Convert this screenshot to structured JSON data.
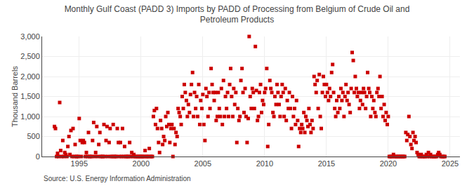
{
  "chart_data": {
    "type": "scatter",
    "title": "Monthly Gulf Coast (PADD 3) Imports by PADD of Processing from Belgium of Crude Oil and\nPetroleum Products",
    "ylabel": "Thousand Barrels",
    "annotations": [
      "Source: U.S. Energy Information Administration"
    ],
    "color": "#cc0000",
    "marker": "square",
    "grid": true,
    "xlim": [
      1992.0,
      2025.8
    ],
    "ylim": [
      0,
      3000
    ],
    "xticks": [
      1995,
      2000,
      2005,
      2010,
      2015,
      2020,
      2025
    ],
    "yticks": [
      0,
      500,
      {
        "value": 1000,
        "label": "1,000"
      },
      {
        "value": 1500,
        "label": "1,500"
      },
      {
        "value": 2000,
        "label": "2,000"
      },
      {
        "value": 2500,
        "label": "2,500"
      },
      {
        "value": 3000,
        "label": "3,000"
      }
    ],
    "x": [
      1993.0,
      1993.08,
      1993.17,
      1993.25,
      1993.33,
      1993.42,
      1993.5,
      1993.58,
      1993.67,
      1993.75,
      1993.83,
      1993.92,
      1994.0,
      1994.08,
      1994.17,
      1994.25,
      1994.33,
      1994.42,
      1994.5,
      1994.58,
      1994.67,
      1994.75,
      1994.83,
      1994.92,
      1995.0,
      1995.08,
      1995.17,
      1995.25,
      1995.33,
      1995.42,
      1995.5,
      1995.58,
      1995.67,
      1995.75,
      1995.83,
      1995.92,
      1996.0,
      1996.08,
      1996.17,
      1996.25,
      1996.33,
      1996.42,
      1996.5,
      1996.58,
      1996.67,
      1996.75,
      1996.83,
      1996.92,
      1997.0,
      1997.08,
      1997.17,
      1997.25,
      1997.33,
      1997.42,
      1997.5,
      1997.58,
      1997.67,
      1997.75,
      1997.83,
      1997.92,
      1998.0,
      1998.08,
      1998.17,
      1998.25,
      1998.33,
      1998.42,
      1998.5,
      1998.58,
      1998.67,
      1998.75,
      1998.83,
      1998.92,
      1999.0,
      1999.08,
      1999.17,
      1999.25,
      1999.33,
      1999.42,
      1999.5,
      1999.58,
      1999.67,
      1999.75,
      1999.83,
      1999.92,
      2000.0,
      2000.08,
      2000.17,
      2000.25,
      2000.33,
      2000.42,
      2000.5,
      2000.58,
      2000.67,
      2000.75,
      2000.83,
      2000.92,
      2001.0,
      2001.08,
      2001.17,
      2001.25,
      2001.33,
      2001.42,
      2001.5,
      2001.58,
      2001.67,
      2001.75,
      2001.83,
      2001.92,
      2002.0,
      2002.08,
      2002.17,
      2002.25,
      2002.33,
      2002.42,
      2002.5,
      2002.58,
      2002.67,
      2002.75,
      2002.83,
      2002.92,
      2003.0,
      2003.08,
      2003.17,
      2003.25,
      2003.33,
      2003.42,
      2003.5,
      2003.58,
      2003.67,
      2003.75,
      2003.83,
      2003.92,
      2004.0,
      2004.08,
      2004.17,
      2004.25,
      2004.33,
      2004.42,
      2004.5,
      2004.58,
      2004.67,
      2004.75,
      2004.83,
      2004.92,
      2005.0,
      2005.08,
      2005.17,
      2005.25,
      2005.33,
      2005.42,
      2005.5,
      2005.58,
      2005.67,
      2005.75,
      2005.83,
      2005.92,
      2006.0,
      2006.08,
      2006.17,
      2006.25,
      2006.33,
      2006.42,
      2006.5,
      2006.58,
      2006.67,
      2006.75,
      2006.83,
      2006.92,
      2007.0,
      2007.08,
      2007.17,
      2007.25,
      2007.33,
      2007.42,
      2007.5,
      2007.58,
      2007.67,
      2007.75,
      2007.83,
      2007.92,
      2008.0,
      2008.08,
      2008.17,
      2008.25,
      2008.33,
      2008.42,
      2008.5,
      2008.58,
      2008.67,
      2008.75,
      2008.83,
      2008.92,
      2009.0,
      2009.08,
      2009.17,
      2009.25,
      2009.33,
      2009.42,
      2009.5,
      2009.58,
      2009.67,
      2009.75,
      2009.83,
      2009.92,
      2010.0,
      2010.08,
      2010.17,
      2010.25,
      2010.33,
      2010.42,
      2010.5,
      2010.58,
      2010.67,
      2010.75,
      2010.83,
      2010.92,
      2011.0,
      2011.08,
      2011.17,
      2011.25,
      2011.33,
      2011.42,
      2011.5,
      2011.58,
      2011.67,
      2011.75,
      2011.83,
      2011.92,
      2012.0,
      2012.08,
      2012.17,
      2012.25,
      2012.33,
      2012.42,
      2012.5,
      2012.58,
      2012.67,
      2012.75,
      2012.83,
      2012.92,
      2013.0,
      2013.08,
      2013.17,
      2013.25,
      2013.33,
      2013.42,
      2013.5,
      2013.58,
      2013.67,
      2013.75,
      2013.83,
      2013.92,
      2014.0,
      2014.08,
      2014.17,
      2014.25,
      2014.33,
      2014.42,
      2014.5,
      2014.58,
      2014.67,
      2014.75,
      2014.83,
      2014.92,
      2015.0,
      2015.08,
      2015.17,
      2015.25,
      2015.33,
      2015.42,
      2015.5,
      2015.58,
      2015.67,
      2015.75,
      2015.83,
      2015.92,
      2016.0,
      2016.08,
      2016.17,
      2016.25,
      2016.33,
      2016.42,
      2016.5,
      2016.58,
      2016.67,
      2016.75,
      2016.83,
      2016.92,
      2017.0,
      2017.08,
      2017.17,
      2017.25,
      2017.33,
      2017.42,
      2017.5,
      2017.58,
      2017.67,
      2017.75,
      2017.83,
      2017.92,
      2018.0,
      2018.08,
      2018.17,
      2018.25,
      2018.33,
      2018.42,
      2018.5,
      2018.58,
      2018.67,
      2018.75,
      2018.83,
      2018.92,
      2019.0,
      2019.08,
      2019.17,
      2019.25,
      2019.33,
      2019.42,
      2019.5,
      2019.58,
      2019.67,
      2019.75,
      2019.83,
      2019.92,
      2020.0,
      2020.08,
      2020.17,
      2020.25,
      2020.33,
      2020.42,
      2020.5,
      2020.58,
      2020.67,
      2020.75,
      2020.83,
      2020.92,
      2021.0,
      2021.08,
      2021.17,
      2021.25,
      2021.33,
      2021.42,
      2021.5,
      2021.58,
      2021.67,
      2021.75,
      2021.83,
      2021.92,
      2022.0,
      2022.08,
      2022.17,
      2022.25,
      2022.33,
      2022.42,
      2022.5,
      2022.58,
      2022.67,
      2022.75,
      2022.83,
      2022.92,
      2023.0,
      2023.08,
      2023.17,
      2023.25,
      2023.33,
      2023.42,
      2023.5,
      2023.58,
      2023.67,
      2023.75,
      2023.83,
      2023.92,
      2024.0,
      2024.08,
      2024.17,
      2024.25,
      2024.33,
      2024.42,
      2024.5,
      2024.58
    ],
    "values": [
      750,
      700,
      0,
      80,
      0,
      1350,
      150,
      0,
      400,
      0,
      100,
      50,
      0,
      250,
      500,
      50,
      650,
      0,
      700,
      0,
      300,
      0,
      0,
      0,
      950,
      400,
      0,
      350,
      400,
      350,
      0,
      100,
      0,
      600,
      0,
      0,
      0,
      400,
      850,
      0,
      100,
      750,
      0,
      300,
      600,
      0,
      0,
      0,
      800,
      0,
      400,
      750,
      0,
      350,
      700,
      0,
      0,
      800,
      0,
      0,
      0,
      700,
      350,
      0,
      350,
      0,
      700,
      0,
      250,
      0,
      0,
      0,
      0,
      350,
      0,
      100,
      0,
      50,
      0,
      0,
      0,
      0,
      0,
      0,
      0,
      0,
      0,
      0,
      150,
      0,
      0,
      0,
      200,
      0,
      0,
      0,
      1000,
      1150,
      800,
      1200,
      700,
      350,
      100,
      900,
      700,
      300,
      500,
      400,
      1000,
      750,
      1100,
      800,
      350,
      700,
      800,
      0,
      700,
      300,
      600,
      500,
      1200,
      1100,
      1000,
      800,
      1500,
      1200,
      1800,
      1600,
      1400,
      1000,
      1300,
      1100,
      1550,
      1800,
      2100,
      1000,
      1600,
      1200,
      1500,
      1000,
      1800,
      800,
      1400,
      1200,
      1550,
      800,
      400,
      1700,
      1500,
      1000,
      1600,
      1200,
      2200,
      1800,
      1600,
      1400,
      1600,
      900,
      1000,
      1600,
      1200,
      1000,
      1700,
      800,
      1900,
      1000,
      1500,
      1200,
      1600,
      1000,
      1800,
      2200,
      1500,
      1000,
      1700,
      1300,
      1600,
      350,
      1200,
      900,
      1000,
      1900,
      2200,
      1600,
      1100,
      1700,
      1000,
      350,
      950,
      3000,
      1500,
      1200,
      1700,
      1600,
      1200,
      2750,
      1650,
      900,
      1000,
      1600,
      1800,
      1100,
      1400,
      1300,
      1600,
      1700,
      2200,
      250,
      800,
      1900,
      1700,
      1600,
      1100,
      1000,
      1500,
      1300,
      1800,
      1600,
      1300,
      1000,
      1500,
      1800,
      1600,
      1000,
      1700,
      900,
      1400,
      1200,
      1600,
      1200,
      700,
      1500,
      1000,
      1200,
      800,
      1400,
      900,
      250,
      700,
      600,
      800,
      700,
      1100,
      600,
      1000,
      900,
      750,
      1200,
      800,
      600,
      900,
      700,
      2000,
      1800,
      1600,
      1900,
      1200,
      2050,
      1000,
      700,
      1600,
      2000,
      1800,
      1500,
      1800,
      1600,
      1400,
      1700,
      1500,
      2100,
      2300,
      1600,
      1200,
      1000,
      1400,
      1100,
      1500,
      1200,
      1700,
      1400,
      1600,
      1000,
      1500,
      1800,
      1400,
      1600,
      1300,
      1100,
      1700,
      2600,
      2400,
      1600,
      2000,
      1700,
      1500,
      1600,
      1200,
      1400,
      1600,
      1300,
      1700,
      1600,
      1200,
      1500,
      2100,
      1700,
      1600,
      1000,
      1500,
      1200,
      1400,
      1100,
      1000,
      1600,
      1700,
      1500,
      2000,
      1200,
      1500,
      1000,
      1300,
      900,
      1100,
      800,
      1000,
      0,
      0,
      0,
      0,
      50,
      0,
      0,
      0,
      0,
      0,
      0,
      0,
      0,
      0,
      0,
      0,
      600,
      400,
      550,
      1000,
      500,
      300,
      200,
      600,
      400,
      500,
      350,
      100,
      50,
      0,
      0,
      50,
      0,
      0,
      0,
      0,
      50,
      0,
      100,
      0,
      50,
      0,
      0,
      0,
      0,
      0,
      0,
      50,
      100,
      50,
      0,
      0,
      0,
      0,
      0
    ]
  }
}
